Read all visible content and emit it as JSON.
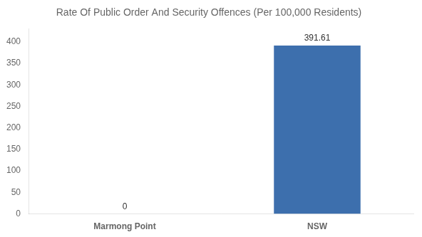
{
  "chart_data": {
    "type": "bar",
    "title": "Rate Of Public Order And Security Offences (Per 100,000 Residents)",
    "categories": [
      "Marmong Point",
      "NSW"
    ],
    "values": [
      0,
      391.61
    ],
    "color": "#3d6fad",
    "ylim": [
      0,
      430
    ],
    "yticks": [
      0,
      50,
      100,
      150,
      200,
      250,
      300,
      350,
      400
    ],
    "grid": false,
    "data_labels": true
  }
}
